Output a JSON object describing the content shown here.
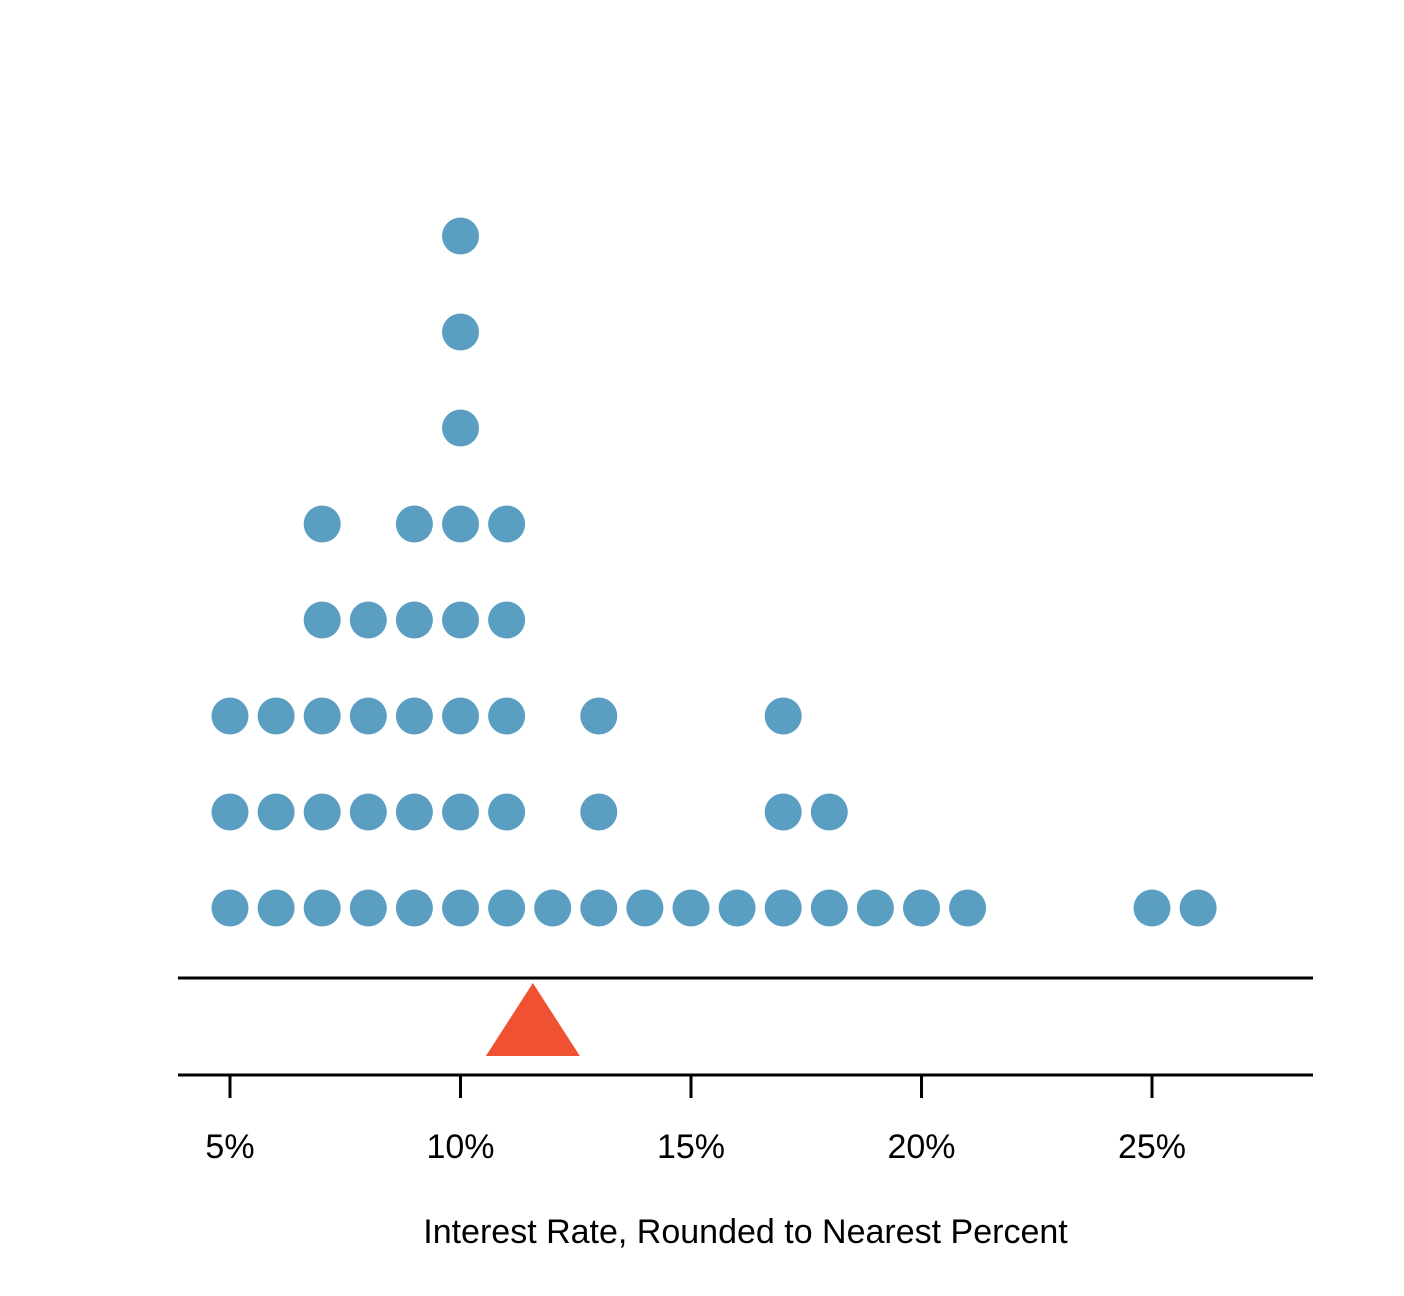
{
  "chart_data": {
    "type": "dot",
    "title": "",
    "xlabel": "Interest Rate, Rounded to Nearest Percent",
    "ylabel": "",
    "xlim": [
      3.85,
      28.5
    ],
    "xticks": [
      5,
      10,
      15,
      20,
      25
    ],
    "tick_labels": [
      "5%",
      "10%",
      "15%",
      "20%",
      "25%"
    ],
    "counts": [
      {
        "x": 5,
        "count": 3
      },
      {
        "x": 6,
        "count": 3
      },
      {
        "x": 7,
        "count": 5
      },
      {
        "x": 8,
        "count": 4
      },
      {
        "x": 9,
        "count": 5
      },
      {
        "x": 10,
        "count": 8
      },
      {
        "x": 11,
        "count": 5
      },
      {
        "x": 12,
        "count": 1
      },
      {
        "x": 13,
        "count": 3
      },
      {
        "x": 14,
        "count": 1
      },
      {
        "x": 15,
        "count": 1
      },
      {
        "x": 16,
        "count": 1
      },
      {
        "x": 17,
        "count": 3
      },
      {
        "x": 18,
        "count": 2
      },
      {
        "x": 19,
        "count": 1
      },
      {
        "x": 20,
        "count": 1
      },
      {
        "x": 21,
        "count": 1
      },
      {
        "x": 25,
        "count": 1
      },
      {
        "x": 26,
        "count": 1
      }
    ],
    "mean_marker": {
      "x": 11.57
    },
    "colors": {
      "dots": "#5a9ec2",
      "mean": "#f05133",
      "axis": "#000000"
    }
  }
}
